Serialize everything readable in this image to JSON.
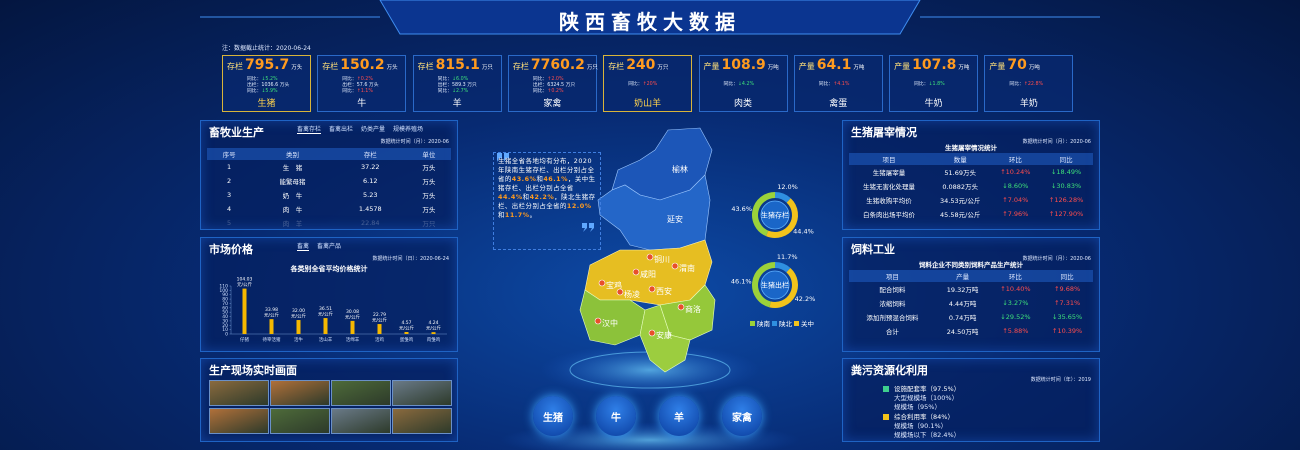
{
  "header": {
    "title": "陕西畜牧大数据",
    "note": "注：数据截止统计：2020-06-24"
  },
  "cards": [
    {
      "label": "存栏",
      "value": "795.7",
      "unit": "万头",
      "name": "生猪",
      "lines": [
        "同比：↓5.2%",
        "出栏：1036.6 万头",
        "同比：↓5.9%"
      ]
    },
    {
      "label": "存栏",
      "value": "150.2",
      "unit": "万头",
      "name": "牛",
      "lines": [
        "同比：↑0.2%",
        "出栏：57.6 万头",
        "同比：↑1.1%"
      ]
    },
    {
      "label": "存栏",
      "value": "815.1",
      "unit": "万只",
      "name": "羊",
      "lines": [
        "同比：↓6.0%",
        "出栏：589.3 万只",
        "同比：↓2.7%"
      ]
    },
    {
      "label": "存栏",
      "value": "7760.2",
      "unit": "万只",
      "name": "家禽",
      "lines": [
        "同比：↑2.0%",
        "出栏：6324.5 万只",
        "同比：↑0.2%"
      ]
    },
    {
      "label": "存栏",
      "value": "240",
      "unit": "万只",
      "name": "奶山羊",
      "lines": [
        "同比：↑20%"
      ]
    },
    {
      "label": "产量",
      "value": "108.9",
      "unit": "万吨",
      "name": "肉类",
      "lines": [
        "同比：↓4.2%"
      ]
    },
    {
      "label": "产量",
      "value": "64.1",
      "unit": "万吨",
      "name": "禽蛋",
      "lines": [
        "同比：↑4.1%"
      ]
    },
    {
      "label": "产量",
      "value": "107.8",
      "unit": "万吨",
      "name": "牛奶",
      "lines": [
        "同比：↓1.8%"
      ]
    },
    {
      "label": "产量",
      "value": "70",
      "unit": "万吨",
      "name": "羊奶",
      "lines": [
        "同比：↑22.8%"
      ]
    }
  ],
  "production": {
    "title": "畜牧业生产",
    "tabs": [
      "畜禽存栏",
      "畜禽出栏",
      "奶类产量",
      "规模养殖场"
    ],
    "time": "数据统计时间（月）：2020-06",
    "headers": [
      "序号",
      "类别",
      "存栏",
      "单位"
    ],
    "rows": [
      [
        "1",
        "生　猪",
        "37.22",
        "万头"
      ],
      [
        "2",
        "能繁母猪",
        "6.12",
        "万头"
      ],
      [
        "3",
        "奶　牛",
        "5.23",
        "万头"
      ],
      [
        "4",
        "肉　牛",
        "1.4578",
        "万头"
      ],
      [
        "5",
        "肉　羊",
        "22.84",
        "万只"
      ]
    ]
  },
  "market": {
    "title": "市场价格",
    "tabs": [
      "畜禽",
      "畜禽产品"
    ],
    "time": "数据统计时间（日）：2020-06-24",
    "chart": {
      "title": "各类别全省平均价格统计",
      "unit": "元/公斤",
      "categories": [
        "仔猪",
        "待宰活猪",
        "活牛",
        "活山羊",
        "活绵羊",
        "活鸡",
        "蛋雏鸡",
        "肉雏鸡"
      ],
      "values": [
        104.03,
        33.98,
        32.0,
        36.51,
        30.08,
        22.79,
        4.57,
        4.24
      ],
      "value_labels": [
        "104.03",
        "33.98",
        "32.00",
        "36.51",
        "30.08",
        "22.79",
        "4.57",
        "4.24"
      ],
      "ylim": [
        0,
        110
      ],
      "yticks": [
        0,
        10,
        20,
        30,
        40,
        50,
        60,
        70,
        80,
        90,
        100,
        110
      ],
      "color": "#f5b800"
    }
  },
  "live": {
    "title": "生产现场实时画面"
  },
  "center": {
    "quote": "生猪全省各地均有分布，2020年陕南生猪存栏、出栏分别占全省的43.6%和46.1%，关中生猪存栏、出栏分别占全省44.4%和42.2%，陕北生猪存栏、出栏分别占全省的12.0%和11.7%。",
    "regions": [
      "榆林",
      "延安",
      "铜川",
      "渭南",
      "咸阳",
      "宝鸡",
      "杨凌",
      "西安",
      "商洛",
      "汉中",
      "安康"
    ],
    "donuts": [
      {
        "label": "生猪存栏",
        "values": [
          43.6,
          12.0,
          44.4
        ],
        "value_labels": [
          "43.6%",
          "12.0%",
          "44.4%"
        ]
      },
      {
        "label": "生猪出栏",
        "values": [
          46.1,
          11.7,
          42.2
        ],
        "value_labels": [
          "46.1%",
          "11.7%",
          "42.2%"
        ]
      }
    ],
    "legend": [
      {
        "name": "陕南",
        "color": "#9bd23a"
      },
      {
        "name": "陕北",
        "color": "#2f8fe0"
      },
      {
        "name": "关中",
        "color": "#f2c31b"
      }
    ],
    "buttons": [
      "生猪",
      "牛",
      "羊",
      "家禽"
    ]
  },
  "slaughter": {
    "title": "生猪屠宰情况",
    "time": "数据统计时间（月）：2020-06",
    "subtitle": "生猪屠宰情况统计",
    "headers": [
      "项目",
      "数量",
      "环比",
      "同比"
    ],
    "rows": [
      [
        "生猪屠宰量",
        "51.69万头",
        "↑10.24%",
        "↓18.49%"
      ],
      [
        "生猪无害化处理量",
        "0.0882万头",
        "↓8.60%",
        "↓30.83%"
      ],
      [
        "生猪收购平均价",
        "34.53元/公斤",
        "↑7.04%",
        "↑126.28%"
      ],
      [
        "白条肉出场平均价",
        "45.58元/公斤",
        "↑7.96%",
        "↑127.90%"
      ]
    ]
  },
  "feed": {
    "title": "饲料工业",
    "time": "数据统计时间（月）：2020-06",
    "subtitle": "饲料企业不同类别饲料产品生产统计",
    "headers": [
      "项目",
      "产量",
      "环比",
      "同比"
    ],
    "rows": [
      [
        "配合饲料",
        "19.32万吨",
        "↑10.40%",
        "↑9.68%"
      ],
      [
        "浓缩饲料",
        "4.44万吨",
        "↓3.27%",
        "↑7.31%"
      ],
      [
        "添加剂预混合饲料",
        "0.74万吨",
        "↓29.52%",
        "↓35.65%"
      ],
      [
        "合计",
        "24.50万吨",
        "↑5.88%",
        "↑10.39%"
      ]
    ]
  },
  "manure": {
    "title": "粪污资源化利用",
    "time": "数据统计时间（年）：2019",
    "groups": [
      {
        "label": "设施配套率（97.5%）",
        "items": [
          "大型规模场（100%）",
          "规模场（95%）"
        ]
      },
      {
        "label": "综合利用率（84%）",
        "items": [
          "规模场（90.1%）",
          "规模场以下（82.4%）"
        ]
      }
    ]
  }
}
